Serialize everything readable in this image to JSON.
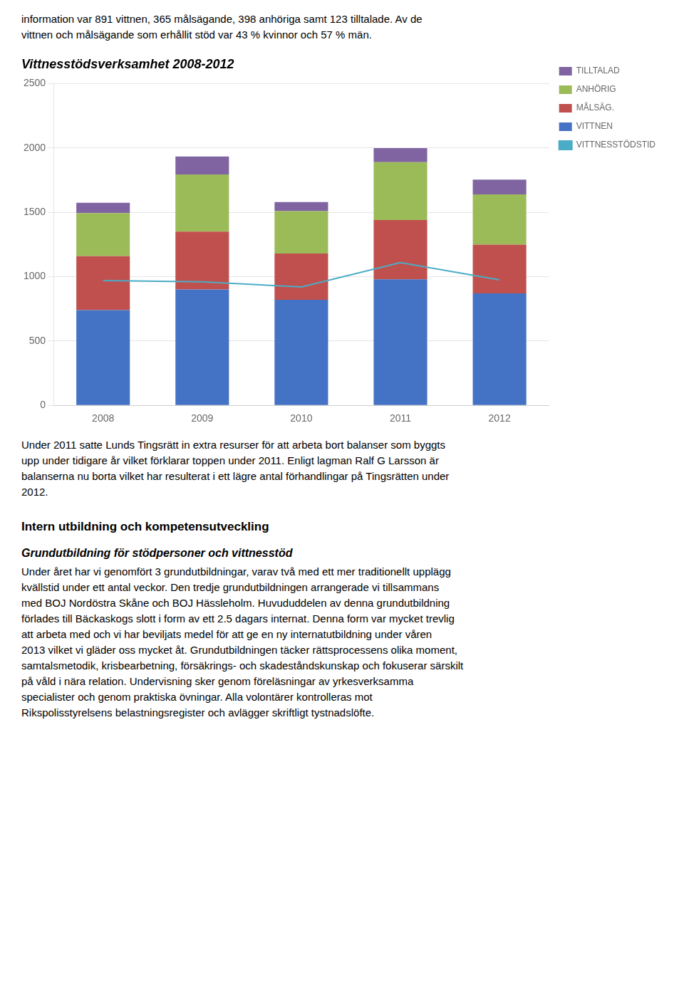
{
  "text_above": [
    "information var 891 vittnen, 365 målsägande, 398 anhöriga samt 123 tilltalade.  Av de",
    "vittnen och målsägande som erhållit stöd var 43 % kvinnor och 57 % män."
  ],
  "chart_data": {
    "type": "bar",
    "title": "Vittnesstödsverksamhet 2008-2012",
    "categories": [
      "2008",
      "2009",
      "2010",
      "2011",
      "2012"
    ],
    "stacked": true,
    "series": [
      {
        "name": "VITTNEN",
        "type": "bar",
        "color": "#4472C4",
        "values": [
          740,
          900,
          820,
          980,
          870
        ]
      },
      {
        "name": "MÅLSÄG.",
        "type": "bar",
        "color": "#C0504D",
        "values": [
          420,
          450,
          360,
          460,
          380
        ]
      },
      {
        "name": "ANHÖRIG",
        "type": "bar",
        "color": "#9BBB59",
        "values": [
          335,
          445,
          330,
          450,
          390
        ]
      },
      {
        "name": "TILLTALAD",
        "type": "bar",
        "color": "#8064A2",
        "values": [
          80,
          140,
          70,
          110,
          115
        ]
      },
      {
        "name": "VITTNESSTÖDSTID",
        "type": "line",
        "color": "#4BACC6",
        "values": [
          970,
          960,
          920,
          1110,
          975
        ]
      }
    ],
    "ylim": [
      0,
      2500
    ],
    "yticks": [
      0,
      500,
      1000,
      1500,
      2000,
      2500
    ],
    "grid": true,
    "legend": "right"
  },
  "text_below": [
    "Under 2011 satte Lunds Tingsrätt in extra resurser för att arbeta bort balanser som byggts",
    "upp under tidigare år vilket förklarar toppen under 2011. Enligt lagman Ralf G Larsson är",
    "balanserna nu borta vilket har resulterat i ett lägre antal förhandlingar på Tingsrätten under",
    "2012."
  ],
  "section_title": "Intern utbildning och kompetensutveckling",
  "subsection_title": "Grundutbildning för stödpersoner och vittnesstöd",
  "body_text": [
    "Under året har vi genomfört 3 grundutbildningar, varav två med ett mer traditionellt upplägg",
    "kvällstid under ett antal veckor. Den tredje grundutbildningen arrangerade vi tillsammans",
    "med BOJ Nordöstra Skåne och BOJ Hässleholm. Huvududdelen av denna grundutbildning",
    "förlades till Bäckaskogs slott i form av ett 2.5 dagars internat. Denna form var mycket trevlig",
    "att arbeta med och vi har beviljats medel för att ge en ny internatutbildning under våren",
    "2013 vilket vi gläder oss mycket åt. Grundutbildningen täcker rättsprocessens olika moment,",
    "samtalsmetodik, krisbearbetning, försäkrings- och skadeståndskunskap och fokuserar särskilt",
    "på våld i nära relation. Undervisning sker genom föreläsningar av yrkesverksamma",
    "specialister och genom praktiska övningar. Alla volontärer kontrolleras mot",
    "Rikspolisstyrelsens belastningsregister och avlägger skriftligt tystnadslöfte."
  ]
}
